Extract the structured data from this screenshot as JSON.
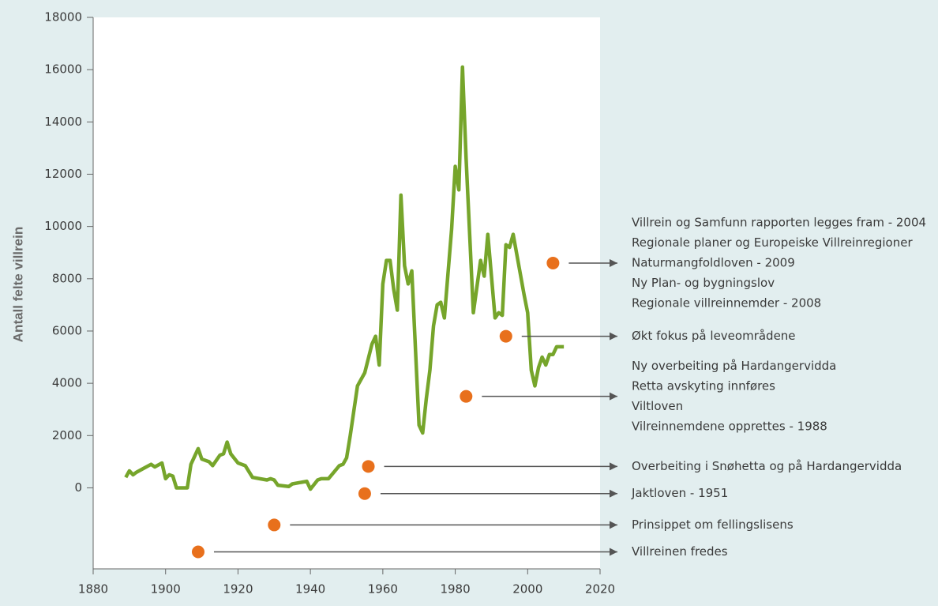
{
  "chart_data": {
    "type": "line",
    "y_label": "Antall felte villrein",
    "xlim": [
      1880,
      2020
    ],
    "xticks": [
      1880,
      1900,
      1920,
      1940,
      1960,
      1980,
      2000,
      2020
    ],
    "ylim": [
      -3100,
      18000
    ],
    "yticks": [
      0,
      2000,
      4000,
      6000,
      8000,
      10000,
      12000,
      14000,
      16000,
      18000
    ],
    "x": [
      1889,
      1890,
      1891,
      1892,
      1894,
      1896,
      1897,
      1899,
      1900,
      1901,
      1902,
      1903,
      1905,
      1906,
      1907,
      1908,
      1909,
      1910,
      1912,
      1913,
      1915,
      1916,
      1917,
      1918,
      1920,
      1922,
      1924,
      1926,
      1928,
      1929,
      1930,
      1931,
      1934,
      1935,
      1937,
      1939,
      1940,
      1942,
      1943,
      1945,
      1948,
      1949,
      1950,
      1951,
      1953,
      1955,
      1957,
      1958,
      1959,
      1960,
      1961,
      1962,
      1963,
      1964,
      1965,
      1966,
      1967,
      1968,
      1970,
      1971,
      1972,
      1973,
      1974,
      1975,
      1976,
      1977,
      1979,
      1980,
      1981,
      1982,
      1983,
      1985,
      1987,
      1988,
      1989,
      1991,
      1992,
      1993,
      1994,
      1995,
      1996,
      1999,
      2000,
      2001,
      2002,
      2003,
      2004,
      2005,
      2006,
      2007,
      2008,
      2010
    ],
    "series": [
      {
        "color": "#76a52b",
        "values": [
          400,
          650,
          500,
          600,
          750,
          900,
          800,
          950,
          350,
          500,
          450,
          0,
          0,
          0,
          900,
          1200,
          1500,
          1100,
          1000,
          850,
          1250,
          1300,
          1750,
          1300,
          950,
          850,
          400,
          350,
          300,
          350,
          300,
          100,
          50,
          150,
          200,
          250,
          -50,
          300,
          350,
          350,
          850,
          900,
          1150,
          2000,
          3900,
          4400,
          5500,
          5800,
          4700,
          7800,
          8700,
          8700,
          7600,
          6800,
          11200,
          8500,
          7800,
          8300,
          2400,
          2100,
          3400,
          4500,
          6200,
          7000,
          7100,
          6500,
          9900,
          12300,
          11400,
          16100,
          12600,
          6700,
          8700,
          8100,
          9700,
          6500,
          6700,
          6600,
          9300,
          9200,
          9700,
          7400,
          6700,
          4500,
          3900,
          4600,
          5000,
          4700,
          5100,
          5100,
          5400,
          5400
        ]
      }
    ],
    "annotation_color": "#e8701c",
    "annotations": [
      {
        "x": 1909,
        "y": -2450,
        "lines": [
          "Villreinen fredes"
        ]
      },
      {
        "x": 1930,
        "y": -1420,
        "lines": [
          "Prinsippet om fellingslisens"
        ]
      },
      {
        "x": 1955,
        "y": -220,
        "lines": [
          "Jaktloven - 1951"
        ]
      },
      {
        "x": 1956,
        "y": 820,
        "lines": [
          "Overbeiting i Snøhetta og på Hardangervidda"
        ]
      },
      {
        "x": 1983,
        "y": 3500,
        "lines": [
          "Ny overbeiting på Hardangervidda",
          "Retta avskyting innføres",
          "Viltloven",
          "Vilreinnemdene opprettes - 1988"
        ]
      },
      {
        "x": 1994,
        "y": 5800,
        "lines": [
          "Økt fokus på leveområdene"
        ]
      },
      {
        "x": 2007,
        "y": 8600,
        "lines": [
          "Villrein og Samfunn rapporten legges fram - 2004",
          "Regionale planer og Europeiske Villreinregioner",
          "Naturmangfoldloven - 2009",
          "Ny Plan- og bygningslov",
          "Regionale villreinnemder - 2008"
        ]
      }
    ]
  }
}
